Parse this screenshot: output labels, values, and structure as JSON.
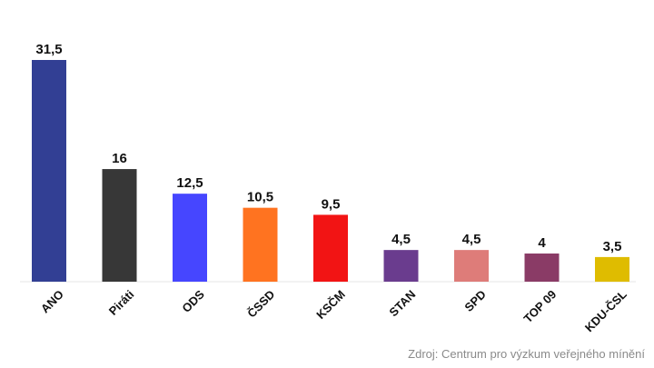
{
  "chart_data": {
    "type": "bar",
    "categories": [
      "ANO",
      "Piráti",
      "ODS",
      "ČSSD",
      "KSČM",
      "STAN",
      "SPD",
      "TOP 09",
      "KDU-ČSL"
    ],
    "values": [
      31.5,
      16,
      12.5,
      10.5,
      9.5,
      4.5,
      4.5,
      4,
      3.5
    ],
    "value_labels": [
      "31,5",
      "16",
      "12,5",
      "10,5",
      "9,5",
      "4,5",
      "4,5",
      "4",
      "3,5"
    ],
    "colors": [
      "#323f94",
      "#373737",
      "#4646ff",
      "#ff7320",
      "#f21414",
      "#6a3c8e",
      "#de7c79",
      "#8a3b66",
      "#dfbc00"
    ],
    "title": "",
    "xlabel": "",
    "ylabel": "",
    "ylim": [
      0,
      31.5
    ],
    "grid": false,
    "legend": "none"
  },
  "footer": {
    "source": "Zdroj: Centrum pro výzkum veřejného mínění"
  }
}
